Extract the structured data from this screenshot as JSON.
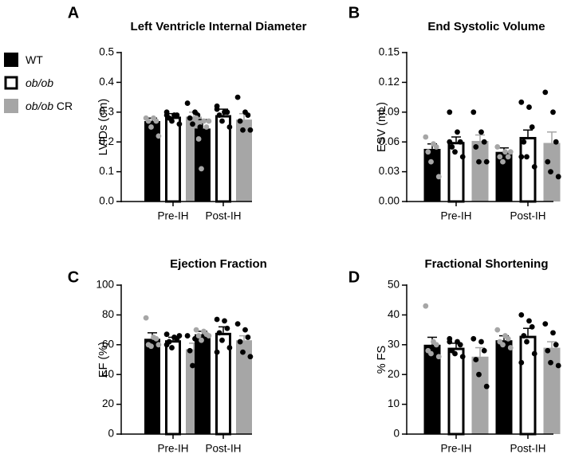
{
  "legend": {
    "entries": [
      {
        "label": "WT",
        "label_italic": "",
        "suffix": "",
        "fill": "#000000",
        "stroke": "#000000"
      },
      {
        "label": "",
        "label_italic": "ob/ob",
        "suffix": "",
        "fill": "#ffffff",
        "stroke": "#000000"
      },
      {
        "label": "",
        "label_italic": "ob/ob",
        "suffix": " CR",
        "fill": "#a6a6a6",
        "stroke": "#a6a6a6"
      }
    ]
  },
  "colors": {
    "wt_bar": "#000000",
    "obob_bar": "#ffffff",
    "cr_bar": "#a6a6a6",
    "wt_points": "#a6a6a6",
    "obob_points": "#000000",
    "cr_points": "#000000"
  },
  "chart_data": [
    {
      "panel": "A",
      "type": "bar",
      "title": "Left Ventricle Internal Diameter",
      "ylabel": "LVIDs (cm)",
      "ylim": [
        0,
        0.5
      ],
      "ticks": [
        0.0,
        0.1,
        0.2,
        0.3,
        0.4,
        0.5
      ],
      "tick_labels": [
        "0.0",
        "0.1",
        "0.2",
        "0.3",
        "0.4",
        "0.5"
      ],
      "categories": [
        "Pre-IH",
        "Post-IH"
      ],
      "series": [
        {
          "name": "WT",
          "values": [
            0.27,
            0.245
          ],
          "sem": [
            0.01,
            0.03
          ],
          "points": [
            [
              0.28,
              0.28,
              0.27,
              0.27,
              0.25,
              0.22
            ],
            [
              0.28,
              0.27,
              0.25,
              0.21,
              0.11,
              0.27
            ]
          ]
        },
        {
          "name": "ob/ob",
          "values": [
            0.285,
            0.29
          ],
          "sem": [
            0.01,
            0.02
          ],
          "points": [
            [
              0.3,
              0.29,
              0.29,
              0.28,
              0.27,
              0.26,
              0.29
            ],
            [
              0.32,
              0.3,
              0.3,
              0.29,
              0.27,
              0.25,
              0.31
            ]
          ]
        },
        {
          "name": "ob/ob CR",
          "values": [
            0.285,
            0.275
          ],
          "sem": [
            0.015,
            0.02
          ],
          "points": [
            [
              0.33,
              0.3,
              0.29,
              0.28,
              0.26,
              0.25
            ],
            [
              0.35,
              0.3,
              0.29,
              0.27,
              0.24,
              0.24
            ]
          ]
        }
      ]
    },
    {
      "panel": "B",
      "type": "bar",
      "title": "End Systolic Volume",
      "ylabel": "ESV (mL)",
      "ylim": [
        0,
        0.15
      ],
      "ticks": [
        0.0,
        0.03,
        0.06,
        0.09,
        0.12,
        0.15
      ],
      "tick_labels": [
        "0.00",
        "0.03",
        "0.06",
        "0.09",
        "0.12",
        "0.15"
      ],
      "categories": [
        "Pre-IH",
        "Post-IH"
      ],
      "series": [
        {
          "name": "WT",
          "values": [
            0.053,
            0.05
          ],
          "sem": [
            0.005,
            0.004
          ],
          "points": [
            [
              0.065,
              0.058,
              0.055,
              0.05,
              0.04,
              0.025
            ],
            [
              0.055,
              0.05,
              0.045,
              0.045,
              0.04,
              0.05
            ]
          ]
        },
        {
          "name": "ob/ob",
          "values": [
            0.06,
            0.065
          ],
          "sem": [
            0.005,
            0.007
          ],
          "points": [
            [
              0.09,
              0.07,
              0.06,
              0.055,
              0.05,
              0.045,
              0.06
            ],
            [
              0.1,
              0.095,
              0.075,
              0.06,
              0.045,
              0.035,
              0.045
            ]
          ]
        },
        {
          "name": "ob/ob CR",
          "values": [
            0.061,
            0.059
          ],
          "sem": [
            0.006,
            0.011
          ],
          "points": [
            [
              0.09,
              0.07,
              0.06,
              0.055,
              0.04,
              0.04
            ],
            [
              0.11,
              0.09,
              0.06,
              0.04,
              0.03,
              0.025
            ]
          ]
        }
      ]
    },
    {
      "panel": "C",
      "type": "bar",
      "title": "Ejection Fraction",
      "ylabel": "EF (%)",
      "ylim": [
        0,
        100
      ],
      "ticks": [
        0,
        20,
        40,
        60,
        80,
        100
      ],
      "tick_labels": [
        "0",
        "20",
        "40",
        "60",
        "80",
        "100"
      ],
      "categories": [
        "Pre-IH",
        "Post-IH"
      ],
      "series": [
        {
          "name": "WT",
          "values": [
            64,
            67
          ],
          "sem": [
            4,
            2
          ],
          "points": [
            [
              78,
              65,
              64,
              60,
              59,
              60
            ],
            [
              70,
              69,
              67,
              66,
              63,
              66
            ]
          ]
        },
        {
          "name": "ob/ob",
          "values": [
            63,
            68
          ],
          "sem": [
            2,
            4
          ],
          "points": [
            [
              67,
              65,
              64,
              62,
              58,
              66,
              60
            ],
            [
              77,
              76,
              71,
              68,
              63,
              58,
              55
            ]
          ]
        },
        {
          "name": "ob/ob CR",
          "values": [
            57,
            63
          ],
          "sem": [
            4,
            3
          ],
          "points": [
            [
              66,
              64,
              60,
              56,
              46,
              37
            ],
            [
              74,
              70,
              65,
              62,
              55,
              52
            ]
          ]
        }
      ]
    },
    {
      "panel": "D",
      "type": "bar",
      "title": "Fractional Shortening",
      "ylabel": "% FS",
      "ylim": [
        0,
        50
      ],
      "ticks": [
        0,
        10,
        20,
        30,
        40,
        50
      ],
      "tick_labels": [
        "0",
        "10",
        "20",
        "30",
        "40",
        "50"
      ],
      "categories": [
        "Pre-IH",
        "Post-IH"
      ],
      "series": [
        {
          "name": "WT",
          "values": [
            30,
            31.5
          ],
          "sem": [
            2.5,
            1.5
          ],
          "points": [
            [
              43,
              31,
              30,
              28,
              27,
              26
            ],
            [
              35,
              33,
              32,
              31,
              30,
              29
            ]
          ]
        },
        {
          "name": "ob/ob",
          "values": [
            29,
            33
          ],
          "sem": [
            1.5,
            2.5
          ],
          "points": [
            [
              32,
              31,
              30,
              28,
              27,
              26,
              31
            ],
            [
              40,
              38,
              36,
              33,
              31,
              27,
              24
            ]
          ]
        },
        {
          "name": "ob/ob CR",
          "values": [
            26,
            29
          ],
          "sem": [
            3,
            2
          ],
          "points": [
            [
              32,
              31,
              28,
              25,
              20,
              16
            ],
            [
              37,
              34,
              30,
              28,
              24,
              23
            ]
          ]
        }
      ]
    }
  ]
}
